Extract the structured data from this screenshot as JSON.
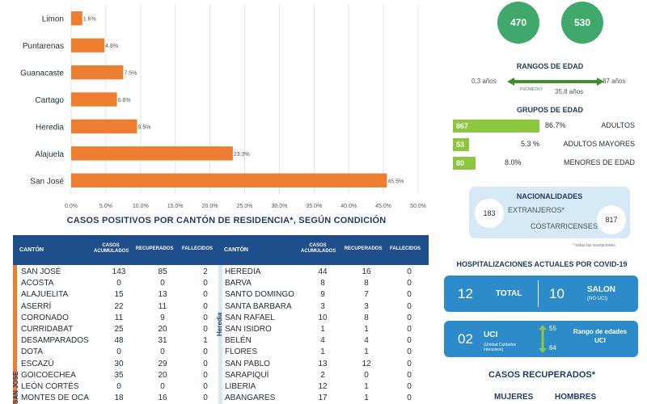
{
  "chart_data": {
    "type": "bar",
    "orientation": "horizontal",
    "categories": [
      "Limon",
      "Puntarenas",
      "Guanacaste",
      "Cartago",
      "Heredia",
      "Alajuela",
      "San José"
    ],
    "values": [
      1.6,
      4.8,
      7.5,
      6.6,
      9.5,
      23.3,
      45.5
    ],
    "value_labels": [
      "1.6%",
      "4.8%",
      "7.5%",
      "6.6%",
      "9.5%",
      "23.3%",
      "45.5%"
    ],
    "xlim": [
      0,
      50
    ],
    "xticks": [
      "0.0%",
      "5.0%",
      "10.0%",
      "15.0%",
      "20.0%",
      "25.0%",
      "30.0%",
      "35.0%",
      "40.0%",
      "45.0%",
      "50.0%"
    ],
    "grid": true,
    "bar_color": "#ed7d31"
  },
  "top_circles": {
    "left": "470",
    "right": "530"
  },
  "age_ranges": {
    "title": "RANGOS DE EDAD",
    "min": "0,3 años",
    "max": "87 años",
    "mid_label": "PROMEDIO",
    "avg": "35,8 años"
  },
  "age_groups": {
    "title": "GRUPOS DE EDAD",
    "items": [
      {
        "count": "867",
        "pct": "86.7%",
        "label": "ADULTOS",
        "value": 86.7
      },
      {
        "count": "53",
        "pct": "5.3 %",
        "label": "ADULTOS MAYORES",
        "value": 5.3
      },
      {
        "count": "80",
        "pct": "8.0%",
        "label": "MENORES DE EDAD",
        "value": 8.0
      }
    ],
    "color": "#8dc63f"
  },
  "nationalities": {
    "title": "NACIONALIDADES",
    "foreign_count": "183",
    "foreign_label": "EXTRANJEROS*",
    "local_label": "COSTARRICENSES",
    "local_count": "817",
    "footnote": "* todas las resoluciones"
  },
  "hospital": {
    "title": "HOSPITALIZACIONES ACTUALES POR COVID-19",
    "total_count": "12",
    "total_label": "TOTAL",
    "salon_count": "10",
    "salon_label": "SALON",
    "salon_sub": "(NO UCI)",
    "uci_count": "02",
    "uci_label": "UCI",
    "uci_sub": "(Unidad Cuidados Intensivos)",
    "range_top": "55",
    "range_bottom": "64",
    "range_label": "Rango de edades UCI"
  },
  "recovered": {
    "title": "CASOS RECUPERADOS*",
    "women": "MUJERES",
    "men": "HOMBRES"
  },
  "cantons": {
    "title": "CASOS POSITIVOS POR CANTÓN DE RESIDENCIA*, SEGÚN CONDICIÓN",
    "headers": [
      "CANTÓN",
      "CASOS ACUMULADOS",
      "RECUPERADOS",
      "FALLECIDOS"
    ],
    "left_province": "SAN JOSE",
    "right_province": "Heredia",
    "left_rows": [
      {
        "name": "SAN JOSÉ",
        "cases": "143",
        "recovered": "85",
        "deaths": "2"
      },
      {
        "name": "ACOSTA",
        "cases": "0",
        "recovered": "0",
        "deaths": "0"
      },
      {
        "name": "ALAJUELITA",
        "cases": "15",
        "recovered": "13",
        "deaths": "0"
      },
      {
        "name": "ASERRÍ",
        "cases": "22",
        "recovered": "11",
        "deaths": "0"
      },
      {
        "name": "CORONADO",
        "cases": "11",
        "recovered": "9",
        "deaths": "0"
      },
      {
        "name": "CURRIDABAT",
        "cases": "25",
        "recovered": "20",
        "deaths": "0"
      },
      {
        "name": "DESAMPARADOS",
        "cases": "48",
        "recovered": "31",
        "deaths": "1"
      },
      {
        "name": "DOTA",
        "cases": "0",
        "recovered": "0",
        "deaths": "0"
      },
      {
        "name": "ESCAZÚ",
        "cases": "30",
        "recovered": "29",
        "deaths": "0"
      },
      {
        "name": "GOICOECHEA",
        "cases": "35",
        "recovered": "20",
        "deaths": "0"
      },
      {
        "name": "LEÓN CORTÉS",
        "cases": "0",
        "recovered": "0",
        "deaths": "0"
      },
      {
        "name": "MONTES DE OCA",
        "cases": "18",
        "recovered": "16",
        "deaths": "0"
      }
    ],
    "right_rows": [
      {
        "name": "HEREDIA",
        "cases": "44",
        "recovered": "16",
        "deaths": "0"
      },
      {
        "name": "BARVA",
        "cases": "8",
        "recovered": "8",
        "deaths": "0"
      },
      {
        "name": "SANTO DOMINGO",
        "cases": "9",
        "recovered": "7",
        "deaths": "0"
      },
      {
        "name": "SANTA BARBARA",
        "cases": "3",
        "recovered": "3",
        "deaths": "0"
      },
      {
        "name": "SAN RAFAEL",
        "cases": "10",
        "recovered": "8",
        "deaths": "0"
      },
      {
        "name": "SAN ISIDRO",
        "cases": "1",
        "recovered": "1",
        "deaths": "0"
      },
      {
        "name": "BELÉN",
        "cases": "4",
        "recovered": "4",
        "deaths": "0"
      },
      {
        "name": "FLORES",
        "cases": "1",
        "recovered": "1",
        "deaths": "0"
      },
      {
        "name": "SAN PABLO",
        "cases": "13",
        "recovered": "12",
        "deaths": "0"
      },
      {
        "name": "SARAPIQUÍ",
        "cases": "2",
        "recovered": "0",
        "deaths": "0"
      },
      {
        "name": "LIBERIA",
        "cases": "12",
        "recovered": "1",
        "deaths": "0"
      },
      {
        "name": "ABANGARES",
        "cases": "17",
        "recovered": "1",
        "deaths": "0"
      }
    ]
  },
  "colors": {
    "navy": "#1f4e8c",
    "orange": "#ed7d31",
    "green": "#3fa86a",
    "blue": "#2e8bc9"
  }
}
